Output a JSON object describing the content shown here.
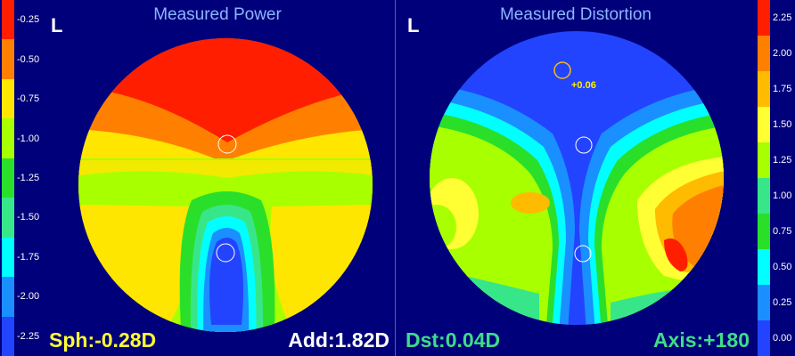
{
  "left_panel": {
    "title": "Measured Power",
    "eye": "L",
    "sph_readout": "Sph:-0.28D",
    "add_readout": "Add:1.82D",
    "sph_color": "#ffff33",
    "add_color": "#ffffff",
    "scale": [
      "-0.25",
      "-0.50",
      "-0.75",
      "-1.00",
      "-1.25",
      "-1.50",
      "-1.75",
      "-2.00",
      "-2.25"
    ],
    "scale_colors": [
      "#ff1e00",
      "#ff8000",
      "#ffe600",
      "#a8ff00",
      "#2adf2a",
      "#38e68a",
      "#00ffff",
      "#1a8fff",
      "#2244ff"
    ]
  },
  "right_panel": {
    "title": "Measured Distortion",
    "eye": "L",
    "marker_value": "+0.06",
    "dst_readout": "Dst:0.04D",
    "axis_readout": "Axis:+180",
    "readout_color": "#3fdc8a",
    "scale": [
      "2.25",
      "2.00",
      "1.75",
      "1.50",
      "1.25",
      "1.00",
      "0.75",
      "0.50",
      "0.25",
      "0.00"
    ],
    "scale_colors": [
      "#ff1e00",
      "#ff8000",
      "#ffbb00",
      "#ffff33",
      "#a8ff00",
      "#38e68a",
      "#2adf2a",
      "#00ffff",
      "#1a8fff",
      "#2244ff"
    ]
  }
}
